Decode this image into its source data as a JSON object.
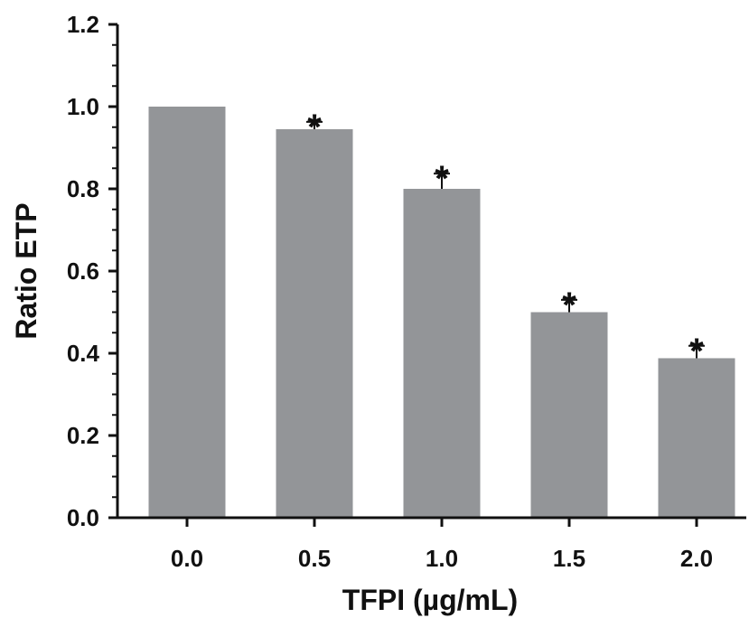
{
  "chart_data": {
    "type": "bar",
    "title": "",
    "xlabel": "TFPI (µg/mL)",
    "ylabel": "Ratio ETP",
    "categories": [
      "0.0",
      "0.5",
      "1.0",
      "1.5",
      "2.0"
    ],
    "values": [
      1.0,
      0.945,
      0.8,
      0.5,
      0.388
    ],
    "error": [
      0.0,
      0.018,
      0.037,
      0.03,
      0.03
    ],
    "significance": [
      "",
      "*",
      "*",
      "*",
      "*"
    ],
    "ylim": [
      0,
      1.2
    ],
    "yticks": [
      "0.0",
      "0.2",
      "0.4",
      "0.6",
      "0.8",
      "1.0",
      "1.2"
    ],
    "bar_color": "#939598",
    "axis_color": "#111111",
    "grid": false,
    "legend": "none"
  }
}
